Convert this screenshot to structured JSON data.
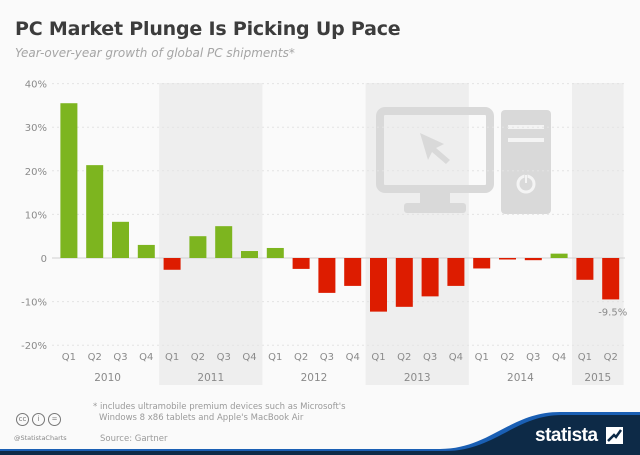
{
  "header": {
    "title": "PC Market Plunge Is Picking Up Pace",
    "subtitle": "Year-over-year growth of global PC shipments*"
  },
  "footer": {
    "footnote_line1": "* includes ultramobile premium devices such as Microsoft's",
    "footnote_line2": "Windows 8 x86 tablets and Apple's MacBook Air",
    "source": "Source: Gartner",
    "handle": "@StatistaCharts",
    "brand": "statista",
    "license_icons": [
      "cc-icon",
      "by-icon",
      "nd-icon"
    ]
  },
  "colors": {
    "positive": "#7db51f",
    "negative": "#dd1c00",
    "shade": "#eeeeee",
    "grid": "#e3e3e3",
    "axis_text": "#8a8a8a",
    "brand_navy": "#0d2a47",
    "brand_blue": "#1a5fb4"
  },
  "chart_data": {
    "type": "bar",
    "title": "PC Market Plunge Is Picking Up Pace",
    "subtitle": "Year-over-year growth of global PC shipments*",
    "xlabel": "",
    "ylabel": "",
    "ylim": [
      -20,
      40
    ],
    "yticks": [
      "40%",
      "30%",
      "20%",
      "10%",
      "0",
      "-10%",
      "-20%"
    ],
    "ytick_values": [
      40,
      30,
      20,
      10,
      0,
      -10,
      -20
    ],
    "grid": true,
    "legend": null,
    "categories": [
      "Q1 2010",
      "Q2 2010",
      "Q3 2010",
      "Q4 2010",
      "Q1 2011",
      "Q2 2011",
      "Q3 2011",
      "Q4 2011",
      "Q1 2012",
      "Q2 2012",
      "Q3 2012",
      "Q4 2012",
      "Q1 2013",
      "Q2 2013",
      "Q3 2013",
      "Q4 2013",
      "Q1 2014",
      "Q2 2014",
      "Q3 2014",
      "Q4 2014",
      "Q1 2015",
      "Q2 2015"
    ],
    "quarter_labels": [
      "Q1",
      "Q2",
      "Q3",
      "Q4",
      "Q1",
      "Q2",
      "Q3",
      "Q4",
      "Q1",
      "Q2",
      "Q3",
      "Q4",
      "Q1",
      "Q2",
      "Q3",
      "Q4",
      "Q1",
      "Q2",
      "Q3",
      "Q4",
      "Q1",
      "Q2"
    ],
    "years": [
      {
        "label": "2010",
        "start": 0,
        "count": 4,
        "shaded": false
      },
      {
        "label": "2011",
        "start": 4,
        "count": 4,
        "shaded": true
      },
      {
        "label": "2012",
        "start": 8,
        "count": 4,
        "shaded": false
      },
      {
        "label": "2013",
        "start": 12,
        "count": 4,
        "shaded": true
      },
      {
        "label": "2014",
        "start": 16,
        "count": 4,
        "shaded": false
      },
      {
        "label": "2015",
        "start": 20,
        "count": 2,
        "shaded": true
      }
    ],
    "values": [
      35.5,
      21.3,
      8.3,
      3.0,
      -2.7,
      5.0,
      7.3,
      1.6,
      2.3,
      -2.5,
      -8.0,
      -6.4,
      -12.3,
      -11.2,
      -8.8,
      -6.4,
      -2.4,
      -0.1,
      -0.5,
      1.0,
      -5.0,
      -9.5
    ],
    "annotations": [
      {
        "index": 21,
        "text": "-9.5%"
      }
    ]
  }
}
